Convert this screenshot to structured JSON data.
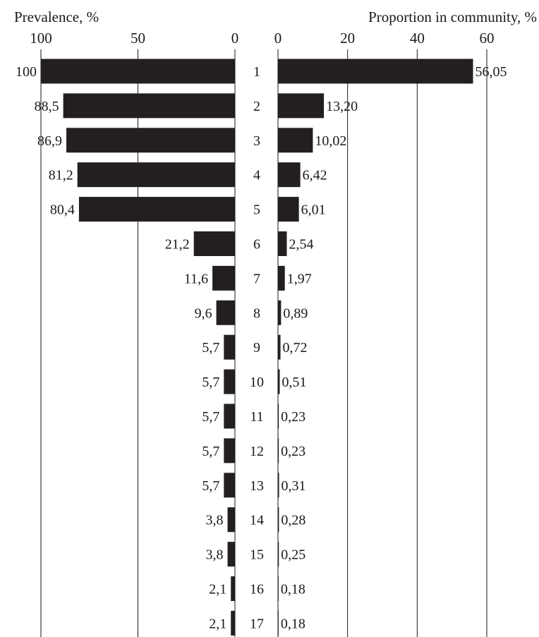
{
  "chart_data": {
    "type": "bar",
    "orientation": "horizontal",
    "layout": "back-to-back",
    "categories": [
      "1",
      "2",
      "3",
      "4",
      "5",
      "6",
      "7",
      "8",
      "9",
      "10",
      "11",
      "12",
      "13",
      "14",
      "15",
      "16",
      "17"
    ],
    "colors": {
      "bar": "#231f20",
      "axis": "#8a8a8a",
      "grid": "#1a1a1a"
    },
    "left_panel": {
      "title": "Prevalence, %",
      "xlim": [
        100,
        0
      ],
      "ticks": [
        100,
        50,
        0
      ],
      "tick_labels": [
        "100",
        "50",
        "0"
      ],
      "values": [
        100,
        88.5,
        86.9,
        81.2,
        80.4,
        21.2,
        11.6,
        9.6,
        5.7,
        5.7,
        5.7,
        5.7,
        5.7,
        3.8,
        3.8,
        2.1,
        2.1
      ],
      "value_labels": [
        "100",
        "88,5",
        "86,9",
        "81,2",
        "80,4",
        "21,2",
        "11,6",
        "9,6",
        "5,7",
        "5,7",
        "5,7",
        "5,7",
        "5,7",
        "3,8",
        "3,8",
        "2,1",
        "2,1"
      ],
      "grid": true
    },
    "right_panel": {
      "title": "Proportion in community, %",
      "xlim": [
        0,
        60
      ],
      "ticks": [
        0,
        20,
        40,
        60
      ],
      "tick_labels": [
        "0",
        "20",
        "40",
        "60"
      ],
      "values": [
        56.05,
        13.2,
        10.02,
        6.42,
        6.01,
        2.54,
        1.97,
        0.89,
        0.72,
        0.51,
        0.23,
        0.23,
        0.31,
        0.28,
        0.25,
        0.18,
        0.18
      ],
      "value_labels": [
        "56,05",
        "13,20",
        "10,02",
        "6,42",
        "6,01",
        "2,54",
        "1,97",
        "0,89",
        "0,72",
        "0,51",
        "0,23",
        "0,23",
        "0,31",
        "0,28",
        "0,25",
        "0,18",
        "0,18"
      ],
      "grid": true
    }
  }
}
